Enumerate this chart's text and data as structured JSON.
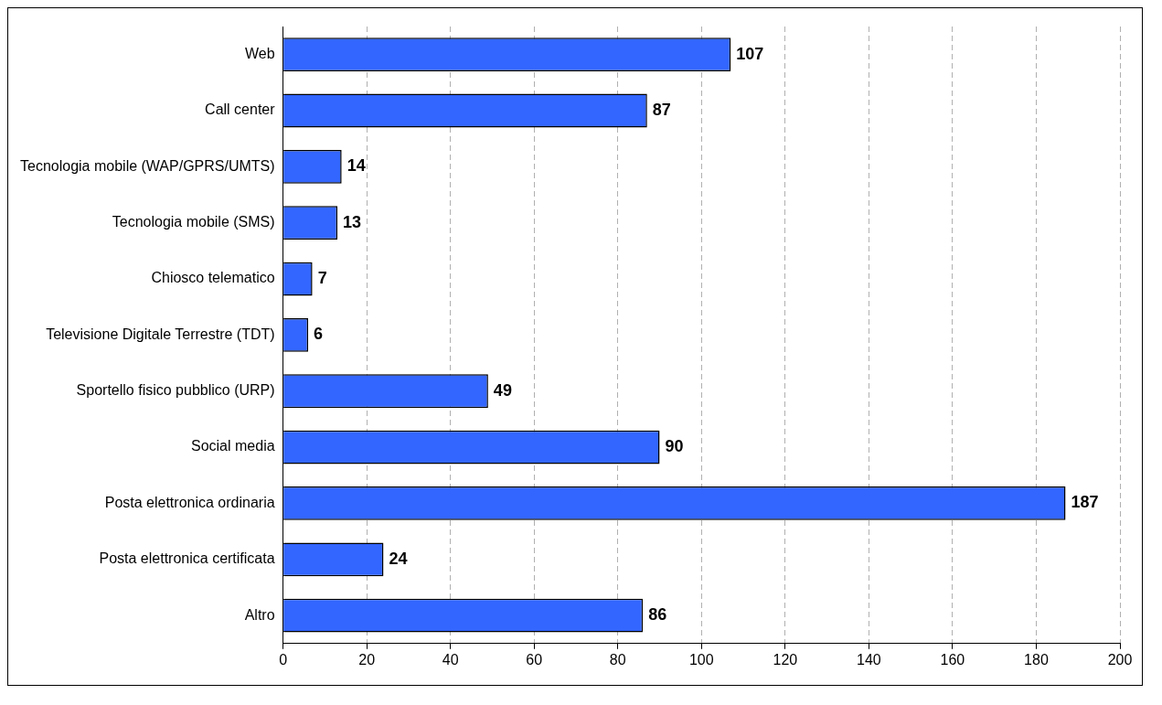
{
  "chart_data": {
    "type": "bar",
    "orientation": "horizontal",
    "categories": [
      "Web",
      "Call center",
      "Tecnologia mobile (WAP/GPRS/UMTS)",
      "Tecnologia mobile (SMS)",
      "Chiosco telematico",
      "Televisione Digitale Terrestre (TDT)",
      "Sportello fisico pubblico (URP)",
      "Social media",
      "Posta elettronica ordinaria",
      "Posta elettronica certificata",
      "Altro"
    ],
    "values": [
      107,
      87,
      14,
      13,
      7,
      6,
      49,
      90,
      187,
      24,
      86
    ],
    "color": "#3366ff",
    "xlim": [
      0,
      200
    ],
    "xticks": [
      0,
      20,
      40,
      60,
      80,
      100,
      120,
      140,
      160,
      180,
      200
    ],
    "grid": "x",
    "line_style": "dashed",
    "data_labels": true,
    "legend": false
  }
}
